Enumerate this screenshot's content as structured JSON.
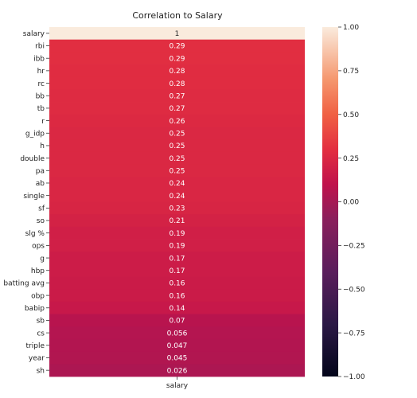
{
  "chart_data": {
    "type": "heatmap",
    "title": "Correlation to Salary",
    "columns": [
      "salary"
    ],
    "rows": [
      "salary",
      "rbi",
      "ibb",
      "hr",
      "rc",
      "bb",
      "tb",
      "r",
      "g_idp",
      "h",
      "double",
      "pa",
      "ab",
      "single",
      "sf",
      "so",
      "slg %",
      "ops",
      "g",
      "hbp",
      "batting avg",
      "obp",
      "babip",
      "sb",
      "cs",
      "triple",
      "year",
      "sh"
    ],
    "values": [
      1,
      0.29,
      0.29,
      0.28,
      0.28,
      0.27,
      0.27,
      0.26,
      0.25,
      0.25,
      0.25,
      0.25,
      0.24,
      0.24,
      0.23,
      0.21,
      0.19,
      0.19,
      0.17,
      0.17,
      0.16,
      0.16,
      0.14,
      0.07,
      0.056,
      0.047,
      0.045,
      0.026
    ],
    "labels": [
      "1",
      "0.29",
      "0.29",
      "0.28",
      "0.28",
      "0.27",
      "0.27",
      "0.26",
      "0.25",
      "0.25",
      "0.25",
      "0.25",
      "0.24",
      "0.24",
      "0.23",
      "0.21",
      "0.19",
      "0.19",
      "0.17",
      "0.17",
      "0.16",
      "0.16",
      "0.14",
      "0.07",
      "0.056",
      "0.047",
      "0.045",
      "0.026"
    ],
    "colorbar": {
      "range": [
        -1.0,
        1.0
      ],
      "ticks": [
        1.0,
        0.75,
        0.5,
        0.25,
        0.0,
        -0.25,
        -0.5,
        -0.75,
        -1.0
      ],
      "tick_labels": [
        "1.00",
        "0.75",
        "0.50",
        "0.25",
        "0.00",
        "−0.25",
        "−0.50",
        "−0.75",
        "−1.00"
      ],
      "colormap": "rocket"
    }
  }
}
